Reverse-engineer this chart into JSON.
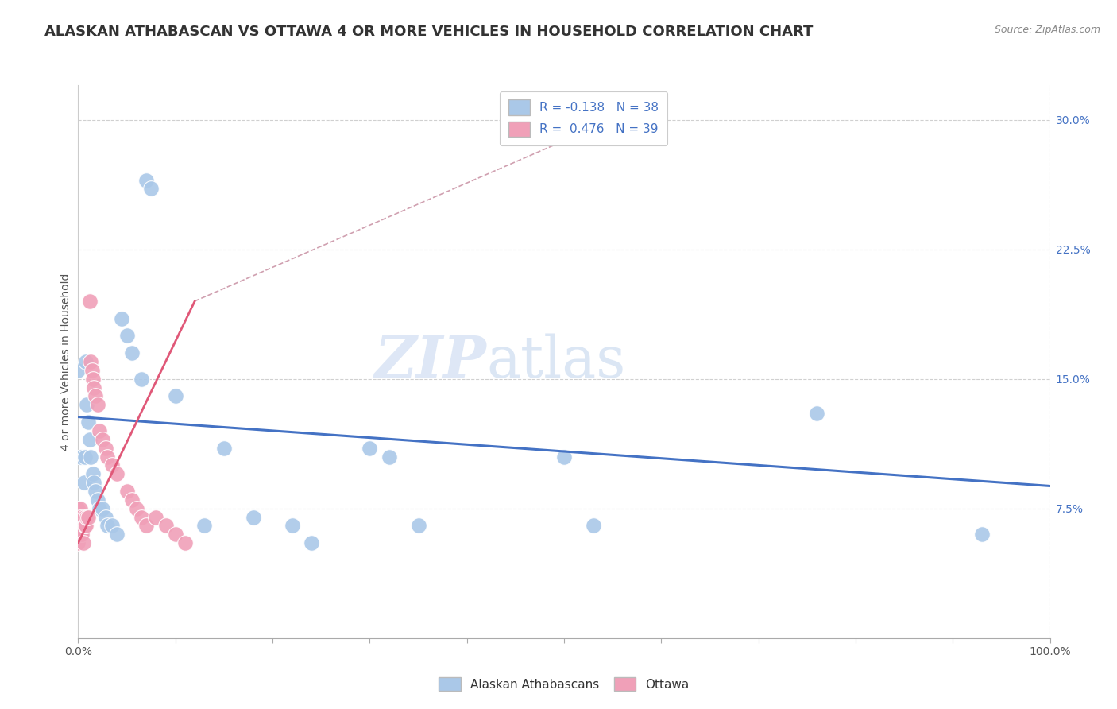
{
  "title": "ALASKAN ATHABASCAN VS OTTAWA 4 OR MORE VEHICLES IN HOUSEHOLD CORRELATION CHART",
  "source": "Source: ZipAtlas.com",
  "ylabel": "4 or more Vehicles in Household",
  "xlim": [
    0.0,
    1.0
  ],
  "ylim": [
    0.0,
    0.32
  ],
  "xticks": [
    0.0,
    0.1,
    0.2,
    0.3,
    0.4,
    0.5,
    0.6,
    0.7,
    0.8,
    0.9,
    1.0
  ],
  "xticklabels": [
    "0.0%",
    "",
    "",
    "",
    "",
    "",
    "",
    "",
    "",
    "",
    "100.0%"
  ],
  "yticks": [
    0.0,
    0.075,
    0.15,
    0.225,
    0.3
  ],
  "yticklabels": [
    "7.5%",
    "15.0%",
    "22.5%",
    "30.0%"
  ],
  "ytick_vals": [
    0.075,
    0.15,
    0.225,
    0.3
  ],
  "R_blue": -0.138,
  "N_blue": 38,
  "R_pink": 0.476,
  "N_pink": 39,
  "blue_scatter": [
    [
      0.0,
      0.155
    ],
    [
      0.003,
      0.105
    ],
    [
      0.006,
      0.09
    ],
    [
      0.007,
      0.105
    ],
    [
      0.008,
      0.16
    ],
    [
      0.009,
      0.135
    ],
    [
      0.01,
      0.125
    ],
    [
      0.012,
      0.115
    ],
    [
      0.013,
      0.105
    ],
    [
      0.015,
      0.095
    ],
    [
      0.016,
      0.09
    ],
    [
      0.018,
      0.085
    ],
    [
      0.02,
      0.08
    ],
    [
      0.022,
      0.075
    ],
    [
      0.025,
      0.075
    ],
    [
      0.028,
      0.07
    ],
    [
      0.03,
      0.065
    ],
    [
      0.035,
      0.065
    ],
    [
      0.04,
      0.06
    ],
    [
      0.045,
      0.185
    ],
    [
      0.05,
      0.175
    ],
    [
      0.055,
      0.165
    ],
    [
      0.065,
      0.15
    ],
    [
      0.07,
      0.265
    ],
    [
      0.075,
      0.26
    ],
    [
      0.1,
      0.14
    ],
    [
      0.13,
      0.065
    ],
    [
      0.15,
      0.11
    ],
    [
      0.18,
      0.07
    ],
    [
      0.22,
      0.065
    ],
    [
      0.24,
      0.055
    ],
    [
      0.3,
      0.11
    ],
    [
      0.32,
      0.105
    ],
    [
      0.35,
      0.065
    ],
    [
      0.5,
      0.105
    ],
    [
      0.53,
      0.065
    ],
    [
      0.76,
      0.13
    ],
    [
      0.93,
      0.06
    ]
  ],
  "pink_scatter": [
    [
      0.0,
      0.075
    ],
    [
      0.0,
      0.065
    ],
    [
      0.0,
      0.06
    ],
    [
      0.0,
      0.055
    ],
    [
      0.001,
      0.07
    ],
    [
      0.001,
      0.065
    ],
    [
      0.002,
      0.075
    ],
    [
      0.002,
      0.07
    ],
    [
      0.003,
      0.065
    ],
    [
      0.003,
      0.06
    ],
    [
      0.004,
      0.06
    ],
    [
      0.005,
      0.055
    ],
    [
      0.006,
      0.07
    ],
    [
      0.007,
      0.065
    ],
    [
      0.008,
      0.065
    ],
    [
      0.009,
      0.07
    ],
    [
      0.01,
      0.07
    ],
    [
      0.012,
      0.195
    ],
    [
      0.013,
      0.16
    ],
    [
      0.014,
      0.155
    ],
    [
      0.015,
      0.15
    ],
    [
      0.016,
      0.145
    ],
    [
      0.018,
      0.14
    ],
    [
      0.02,
      0.135
    ],
    [
      0.022,
      0.12
    ],
    [
      0.025,
      0.115
    ],
    [
      0.028,
      0.11
    ],
    [
      0.03,
      0.105
    ],
    [
      0.035,
      0.1
    ],
    [
      0.04,
      0.095
    ],
    [
      0.05,
      0.085
    ],
    [
      0.055,
      0.08
    ],
    [
      0.06,
      0.075
    ],
    [
      0.065,
      0.07
    ],
    [
      0.07,
      0.065
    ],
    [
      0.08,
      0.07
    ],
    [
      0.09,
      0.065
    ],
    [
      0.1,
      0.06
    ],
    [
      0.11,
      0.055
    ]
  ],
  "blue_line": [
    [
      0.0,
      0.128
    ],
    [
      1.0,
      0.088
    ]
  ],
  "pink_line": [
    [
      0.0,
      0.055
    ],
    [
      0.12,
      0.195
    ]
  ],
  "pink_line_dashed": [
    [
      0.12,
      0.195
    ],
    [
      0.55,
      0.3
    ]
  ],
  "watermark_zip": "ZIP",
  "watermark_atlas": "atlas",
  "dot_size": 200,
  "title_fontsize": 13,
  "label_fontsize": 10,
  "tick_fontsize": 10,
  "blue_color": "#aac8e8",
  "pink_color": "#f0a0b8",
  "blue_line_color": "#4472c4",
  "pink_line_color": "#e05878",
  "pink_dashed_color": "#d0a0b0",
  "grid_color": "#d0d0d0",
  "background_color": "#ffffff",
  "legend_label_blue": "Alaskan Athabascans",
  "legend_label_pink": "Ottawa"
}
